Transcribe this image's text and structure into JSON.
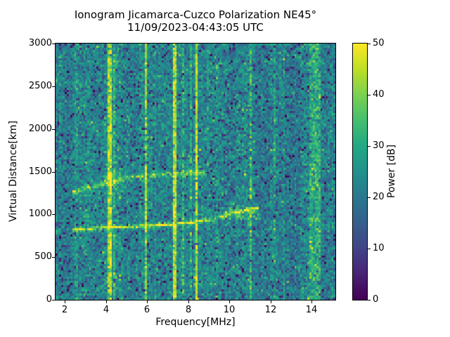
{
  "figure": {
    "title": "Ionogram Jicamarca-Cuzco Polarization NE45°",
    "subtitle": "11/09/2023-04:43:05 UTC"
  },
  "chart_data": {
    "type": "heatmap",
    "title": "Ionogram Jicamarca-Cuzco Polarization NE45°",
    "subtitle": "11/09/2023-04:43:05 UTC",
    "xlabel": "Frequency[MHz]",
    "ylabel": "Virtual Distance[km]",
    "xlim": [
      1.55,
      15.15
    ],
    "ylim": [
      0,
      3000
    ],
    "xticks": [
      2,
      4,
      6,
      8,
      10,
      12,
      14
    ],
    "yticks": [
      0,
      500,
      1000,
      1500,
      2000,
      2500,
      3000
    ],
    "grid": false,
    "colorbar": {
      "label": "Power [dB]",
      "min": 0,
      "max": 50,
      "ticks": [
        0,
        10,
        20,
        30,
        40,
        50
      ],
      "colormap": "viridis",
      "position": "right"
    },
    "colormap_stops": [
      [
        0.0,
        "#440154"
      ],
      [
        0.1,
        "#482475"
      ],
      [
        0.2,
        "#414487"
      ],
      [
        0.3,
        "#355f8d"
      ],
      [
        0.4,
        "#2a788e"
      ],
      [
        0.5,
        "#21918c"
      ],
      [
        0.6,
        "#22a884"
      ],
      [
        0.7,
        "#44bf70"
      ],
      [
        0.8,
        "#7ad151"
      ],
      [
        0.9,
        "#bddf26"
      ],
      [
        1.0,
        "#fde725"
      ]
    ],
    "render": {
      "nx": 150,
      "ny": 122,
      "seed": 7
    },
    "noise": {
      "base_db": 23,
      "sigma_db": 4.6,
      "dark_speckle_prob": 0.11,
      "dark_speckle_db": [
        6,
        19
      ],
      "bright_speckle_prob": 0.025,
      "bright_speckle_db": [
        5,
        12
      ],
      "column_jitter_db": 1.6,
      "regions": [
        {
          "f0": 1.55,
          "f1": 2.3,
          "bias_db": -1.0
        },
        {
          "f0": 2.3,
          "f1": 3.3,
          "bias_db": -0.5
        },
        {
          "f0": 11.3,
          "f1": 13.85,
          "bias_db": -1.5
        },
        {
          "f0": 14.55,
          "f1": 15.15,
          "bias_db": -1.0
        }
      ]
    },
    "rfi_lines_mhz": [
      {
        "f": 2.55,
        "power_db": 5,
        "width_mhz": 0.05
      },
      {
        "f": 4.18,
        "power_db": 23,
        "width_mhz": 0.06,
        "halo_mhz": 0.24,
        "halo_db": 6
      },
      {
        "f": 4.42,
        "power_db": 10,
        "width_mhz": 0.05
      },
      {
        "f": 5.95,
        "power_db": 18,
        "width_mhz": 0.06
      },
      {
        "f": 7.35,
        "power_db": 22,
        "width_mhz": 0.06
      },
      {
        "f": 7.8,
        "power_db": 6,
        "width_mhz": 0.05
      },
      {
        "f": 8.15,
        "power_db": 8,
        "width_mhz": 0.05
      },
      {
        "f": 8.38,
        "power_db": 23,
        "width_mhz": 0.06,
        "halo_mhz": 0.15,
        "halo_db": 4
      },
      {
        "f": 11.0,
        "power_db": 13,
        "width_mhz": 0.06
      },
      {
        "f": 12.2,
        "power_db": 7,
        "width_mhz": 0.05
      },
      {
        "f": 12.65,
        "power_db": 4,
        "width_mhz": 0.05
      },
      {
        "f": 14.15,
        "power_db": 11,
        "width_mhz": 0.26,
        "halo_mhz": 0.5,
        "halo_db": 4
      },
      {
        "f": 15.0,
        "power_db": 4,
        "width_mhz": 0.06
      }
    ],
    "echo_traces": [
      {
        "points": [
          [
            2.4,
            815
          ],
          [
            3.0,
            826
          ],
          [
            4.0,
            841
          ],
          [
            5.0,
            852
          ],
          [
            6.0,
            863
          ],
          [
            7.0,
            877
          ],
          [
            7.6,
            889
          ],
          [
            8.3,
            906
          ],
          [
            9.0,
            930
          ],
          [
            9.5,
            955
          ],
          [
            10.0,
            998
          ],
          [
            10.5,
            1032
          ],
          [
            11.0,
            1058
          ],
          [
            11.4,
            1072
          ]
        ],
        "width_km": 15,
        "power_db": 26
      },
      {
        "points": [
          [
            2.35,
            1255
          ],
          [
            3.0,
            1300
          ],
          [
            3.7,
            1345
          ],
          [
            4.4,
            1398
          ],
          [
            5.2,
            1428
          ],
          [
            6.0,
            1452
          ],
          [
            7.0,
            1468
          ],
          [
            8.0,
            1478
          ],
          [
            8.85,
            1488
          ]
        ],
        "width_km": 28,
        "power_db": 15
      }
    ],
    "diffuse_patches": [
      {
        "f0": 3.9,
        "f1": 4.7,
        "km0": 1340,
        "km1": 1490,
        "power_db": 12,
        "density": 0.45
      },
      {
        "f0": 3.8,
        "f1": 4.65,
        "km0": 1490,
        "km1": 2320,
        "power_db": 8,
        "density": 0.13
      },
      {
        "f0": 5.7,
        "f1": 6.35,
        "km0": 1460,
        "km1": 2060,
        "power_db": 7,
        "density": 0.13
      },
      {
        "f0": 7.9,
        "f1": 8.6,
        "km0": 1500,
        "km1": 1780,
        "power_db": 12,
        "density": 0.35
      },
      {
        "f0": 8.2,
        "f1": 9.8,
        "km0": 1700,
        "km1": 2000,
        "power_db": 6,
        "density": 0.1
      },
      {
        "f0": 7.2,
        "f1": 9.8,
        "km0": 2650,
        "km1": 2790,
        "power_db": 15,
        "density": 0.2
      },
      {
        "f0": 7.6,
        "f1": 9.6,
        "km0": 655,
        "km1": 718,
        "power_db": 13,
        "density": 0.17
      },
      {
        "f0": 9.4,
        "f1": 11.5,
        "km0": 945,
        "km1": 1085,
        "power_db": 15,
        "density": 0.5
      }
    ]
  }
}
